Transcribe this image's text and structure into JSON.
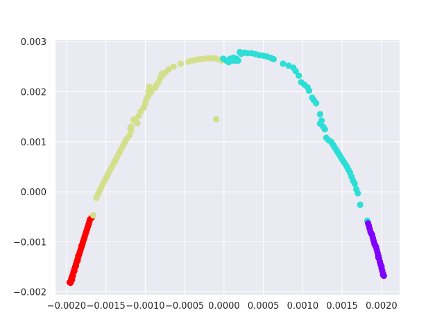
{
  "chart_data": {
    "type": "scatter",
    "title": "",
    "xlabel": "",
    "ylabel": "",
    "xlim": [
      -0.00214,
      0.00223
    ],
    "ylim": [
      -0.00206,
      0.00303
    ],
    "grid": true,
    "background": "#EAEAF2",
    "grid_color": "#FFFFFF",
    "xticks": [
      -0.002,
      -0.0015,
      -0.001,
      -0.0005,
      0.0,
      0.0005,
      0.001,
      0.0015,
      0.002
    ],
    "xtick_labels": [
      "−0.0020",
      "−0.0015",
      "−0.0010",
      "−0.0005",
      "0.0000",
      "0.0005",
      "0.0010",
      "0.0015",
      "0.0020"
    ],
    "yticks": [
      -0.002,
      -0.001,
      0.0,
      0.001,
      0.002,
      0.003
    ],
    "ytick_labels": [
      "−0.002",
      "−0.001",
      "0.000",
      "0.001",
      "0.002",
      "0.003"
    ],
    "series": [
      {
        "color": "#FF0000",
        "points": [
          [
            -0.00195,
            -0.00182
          ],
          [
            -0.00194,
            -0.00178
          ],
          [
            -0.00194,
            -0.00174
          ],
          [
            -0.00193,
            -0.0017
          ],
          [
            -0.00192,
            -0.00165
          ],
          [
            -0.00191,
            -0.0016
          ],
          [
            -0.0019,
            -0.00155
          ],
          [
            -0.00189,
            -0.0015
          ],
          [
            -0.00188,
            -0.00145
          ],
          [
            -0.00187,
            -0.0014
          ],
          [
            -0.00186,
            -0.00135
          ],
          [
            -0.00185,
            -0.0013
          ],
          [
            -0.00184,
            -0.00125
          ],
          [
            -0.00183,
            -0.0012
          ],
          [
            -0.00182,
            -0.00115
          ],
          [
            -0.00181,
            -0.0011
          ],
          [
            -0.0018,
            -0.00105
          ],
          [
            -0.00179,
            -0.001
          ],
          [
            -0.00178,
            -0.00095
          ],
          [
            -0.00177,
            -0.0009
          ],
          [
            -0.00176,
            -0.00085
          ],
          [
            -0.00175,
            -0.0008
          ],
          [
            -0.00174,
            -0.00075
          ],
          [
            -0.00173,
            -0.0007
          ],
          [
            -0.00172,
            -0.00065
          ],
          [
            -0.00171,
            -0.0006
          ],
          [
            -0.0017,
            -0.00055
          ],
          [
            -0.00168,
            -0.00052
          ],
          [
            -0.00192,
            -0.00168
          ],
          [
            -0.0019,
            -0.00158
          ],
          [
            -0.00188,
            -0.00148
          ],
          [
            -0.00186,
            -0.00138
          ],
          [
            -0.00196,
            -0.00181
          ],
          [
            -0.00193,
            -0.00176
          ],
          [
            -0.00185,
            -0.00128
          ],
          [
            -0.00181,
            -0.00108
          ]
        ]
      },
      {
        "color": "#D4DF8C",
        "points": [
          [
            -0.00166,
            -0.00047
          ],
          [
            -0.00162,
            -0.00012
          ],
          [
            -0.0016,
            -5e-05
          ],
          [
            -0.00158,
            2e-05
          ],
          [
            -0.00156,
            8e-05
          ],
          [
            -0.00154,
            0.00015
          ],
          [
            -0.00152,
            0.00021
          ],
          [
            -0.0015,
            0.00027
          ],
          [
            -0.00148,
            0.00033
          ],
          [
            -0.00146,
            0.00039
          ],
          [
            -0.00144,
            0.00045
          ],
          [
            -0.00142,
            0.00051
          ],
          [
            -0.0014,
            0.00057
          ],
          [
            -0.00138,
            0.00063
          ],
          [
            -0.00136,
            0.00069
          ],
          [
            -0.00134,
            0.00075
          ],
          [
            -0.00132,
            0.00081
          ],
          [
            -0.0013,
            0.00087
          ],
          [
            -0.00128,
            0.00093
          ],
          [
            -0.00126,
            0.00099
          ],
          [
            -0.00124,
            0.00105
          ],
          [
            -0.0012,
            0.00113
          ],
          [
            -0.00118,
            0.00122
          ],
          [
            -0.00118,
            0.0013
          ],
          [
            -0.0011,
            0.00137
          ],
          [
            -0.00113,
            0.00145
          ],
          [
            -0.00108,
            0.00152
          ],
          [
            -0.00106,
            0.0016
          ],
          [
            -0.00102,
            0.00168
          ],
          [
            -0.001,
            0.00176
          ],
          [
            -0.00099,
            0.00183
          ],
          [
            -0.00097,
            0.0019
          ],
          [
            -0.00094,
            0.00196
          ],
          [
            -0.00092,
            0.00201
          ],
          [
            -0.00088,
            0.00207
          ],
          [
            -0.00086,
            0.00213
          ],
          [
            -0.00083,
            0.0022
          ],
          [
            -0.00081,
            0.00227
          ],
          [
            -0.00078,
            0.00233
          ],
          [
            -0.00074,
            0.00239
          ],
          [
            -0.0007,
            0.00245
          ],
          [
            -0.00064,
            0.0025
          ],
          [
            -0.00055,
            0.00256
          ],
          [
            -0.00045,
            0.0026
          ],
          [
            -0.0004,
            0.00262
          ],
          [
            -0.00035,
            0.00264
          ],
          [
            -0.0003,
            0.00265
          ],
          [
            -0.00025,
            0.00266
          ],
          [
            -0.0002,
            0.00267
          ],
          [
            -0.00015,
            0.00267
          ],
          [
            -0.0001,
            0.00266
          ],
          [
            -5e-05,
            0.00264
          ],
          [
            -3e-05,
            0.00262
          ],
          [
            -0.0001,
            0.00145
          ],
          [
            -0.00115,
            0.00144
          ],
          [
            -0.00112,
            0.0014
          ],
          [
            -0.00119,
            0.00127
          ],
          [
            -0.00095,
            0.0021
          ],
          [
            -0.00096,
            0.002
          ],
          [
            -0.00079,
            0.00236
          ]
        ]
      },
      {
        "color": "#2CDED6",
        "points": [
          [
            -1e-05,
            0.00266
          ],
          [
            3e-05,
            0.00262
          ],
          [
            6e-05,
            0.00259
          ],
          [
            8e-05,
            0.00266
          ],
          [
            0.0001,
            0.00262
          ],
          [
            0.00012,
            0.00268
          ],
          [
            0.00014,
            0.00262
          ],
          [
            0.00016,
            0.00266
          ],
          [
            0.00018,
            0.00262
          ],
          [
            0.0002,
            0.00279
          ],
          [
            0.00022,
            0.00276
          ],
          [
            0.00026,
            0.00278
          ],
          [
            0.0003,
            0.00277
          ],
          [
            0.00035,
            0.00277
          ],
          [
            0.0004,
            0.00275
          ],
          [
            0.00045,
            0.00273
          ],
          [
            0.0005,
            0.00272
          ],
          [
            0.00055,
            0.0027
          ],
          [
            0.0006,
            0.00267
          ],
          [
            0.00063,
            0.00265
          ],
          [
            0.00075,
            0.00256
          ],
          [
            0.00082,
            0.00252
          ],
          [
            0.00088,
            0.00248
          ],
          [
            0.00091,
            0.00241
          ],
          [
            0.00095,
            0.00232
          ],
          [
            0.00098,
            0.00219
          ],
          [
            0.00102,
            0.00214
          ],
          [
            0.00106,
            0.00209
          ],
          [
            0.00108,
            0.00202
          ],
          [
            0.00112,
            0.00188
          ],
          [
            0.00114,
            0.00183
          ],
          [
            0.00117,
            0.00177
          ],
          [
            0.00122,
            0.00155
          ],
          [
            0.00124,
            0.00142
          ],
          [
            0.00122,
            0.00136
          ],
          [
            0.00126,
            0.0013
          ],
          [
            0.00128,
            0.00125
          ],
          [
            0.0013,
            0.00108
          ],
          [
            0.00133,
            0.00103
          ],
          [
            0.00136,
            0.001
          ],
          [
            0.00138,
            0.00095
          ],
          [
            0.0014,
            0.0009
          ],
          [
            0.00142,
            0.00085
          ],
          [
            0.00144,
            0.0008
          ],
          [
            0.00146,
            0.00075
          ],
          [
            0.00148,
            0.0007
          ],
          [
            0.0015,
            0.00065
          ],
          [
            0.00152,
            0.0006
          ],
          [
            0.00154,
            0.00055
          ],
          [
            0.00156,
            0.0005
          ],
          [
            0.00158,
            0.00044
          ],
          [
            0.0016,
            0.00038
          ],
          [
            0.00162,
            0.0003
          ],
          [
            0.00164,
            0.00022
          ],
          [
            0.00166,
            0.00016
          ],
          [
            0.00168,
            5e-05
          ],
          [
            0.0017,
            -3e-05
          ],
          [
            0.00173,
            -0.00026
          ],
          [
            0.00182,
            -0.00058
          ]
        ]
      },
      {
        "color": "#8000FF",
        "points": [
          [
            0.00183,
            -0.00063
          ],
          [
            0.00184,
            -0.00068
          ],
          [
            0.00185,
            -0.00074
          ],
          [
            0.00186,
            -0.0008
          ],
          [
            0.00188,
            -0.00086
          ],
          [
            0.00189,
            -0.00092
          ],
          [
            0.0019,
            -0.00098
          ],
          [
            0.00191,
            -0.00104
          ],
          [
            0.00193,
            -0.0011
          ],
          [
            0.00194,
            -0.00116
          ],
          [
            0.00195,
            -0.00122
          ],
          [
            0.00196,
            -0.00128
          ],
          [
            0.00197,
            -0.00134
          ],
          [
            0.00198,
            -0.0014
          ],
          [
            0.00199,
            -0.00146
          ],
          [
            0.002,
            -0.00152
          ],
          [
            0.00201,
            -0.00158
          ],
          [
            0.00202,
            -0.00164
          ],
          [
            0.00203,
            -0.00168
          ],
          [
            0.00187,
            -0.00083
          ],
          [
            0.00192,
            -0.00107
          ],
          [
            0.00196,
            -0.00131
          ],
          [
            0.002,
            -0.00149
          ],
          [
            0.00202,
            -0.00166
          ]
        ]
      }
    ]
  }
}
